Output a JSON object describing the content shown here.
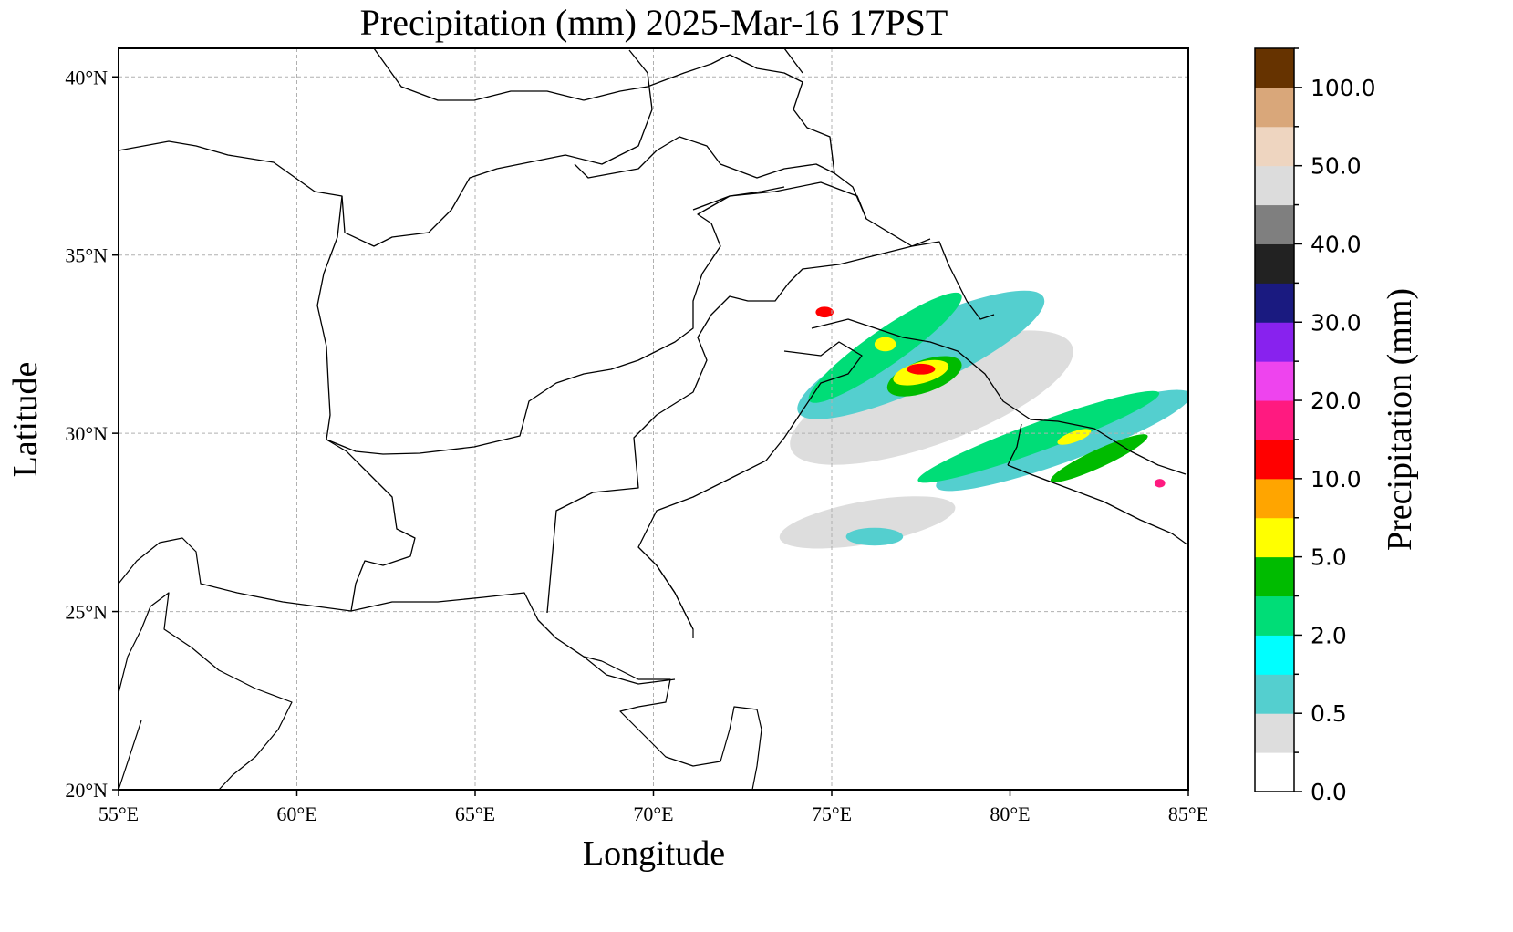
{
  "figure": {
    "title": "Precipitation (mm)  2025-Mar-16 17PST",
    "xlabel": "Longitude",
    "ylabel": "Latitude",
    "xticks": [
      "55°E",
      "60°E",
      "65°E",
      "70°E",
      "75°E",
      "80°E",
      "85°E"
    ],
    "xtick_values": [
      55,
      60,
      65,
      70,
      75,
      80,
      85
    ],
    "yticks": [
      "20°N",
      "25°N",
      "30°N",
      "35°N",
      "40°N"
    ],
    "ytick_values": [
      20,
      25,
      30,
      35,
      40
    ],
    "extent": {
      "lon": [
        55,
        85
      ],
      "lat": [
        20,
        40.8
      ]
    },
    "grid": true
  },
  "colorbar": {
    "label": "Precipitation (mm)",
    "boundaries": [
      0,
      0.25,
      0.5,
      1,
      2,
      3,
      5,
      7,
      10,
      15,
      20,
      25,
      30,
      35,
      40,
      45,
      50,
      60,
      75,
      100,
      150
    ],
    "colors": [
      "#ffffff",
      "#dddddd",
      "#54cfcf",
      "#00ffff",
      "#00dd77",
      "#00bb00",
      "#ffff00",
      "#ffa500",
      "#ff0000",
      "#ff1a80",
      "#ee44ee",
      "#8822ee",
      "#1a1a80",
      "#222222",
      "#7f7f7f",
      "#dcdcdc",
      "#eed5c0",
      "#d9a77a",
      "#663300"
    ],
    "tick_labels": [
      "0.0",
      "0.5",
      "2.0",
      "5.0",
      "10.0",
      "20.0",
      "30.0",
      "40.0",
      "50.0",
      "100.0"
    ]
  },
  "precip_features": [
    {
      "type": "ellipse",
      "lon": 77.8,
      "lat": 31.0,
      "rx": 4.2,
      "ry": 1.3,
      "rot": -20,
      "level": "0.25"
    },
    {
      "type": "ellipse",
      "lon": 76.0,
      "lat": 27.5,
      "rx": 2.5,
      "ry": 0.6,
      "rot": -10,
      "level": "0.25"
    },
    {
      "type": "ellipse",
      "lon": 77.5,
      "lat": 32.2,
      "rx": 3.8,
      "ry": 0.9,
      "rot": -25,
      "level": "0.5"
    },
    {
      "type": "ellipse",
      "lon": 81.5,
      "lat": 29.8,
      "rx": 3.8,
      "ry": 0.6,
      "rot": -20,
      "level": "0.5"
    },
    {
      "type": "ellipse",
      "lon": 76.2,
      "lat": 27.1,
      "rx": 0.8,
      "ry": 0.25,
      "rot": 0,
      "level": "0.5"
    },
    {
      "type": "ellipse",
      "lon": 76.5,
      "lat": 32.4,
      "rx": 2.6,
      "ry": 0.5,
      "rot": -35,
      "level": "2"
    },
    {
      "type": "ellipse",
      "lon": 80.8,
      "lat": 29.9,
      "rx": 3.6,
      "ry": 0.4,
      "rot": -20,
      "level": "2"
    },
    {
      "type": "ellipse",
      "lon": 77.6,
      "lat": 31.6,
      "rx": 1.1,
      "ry": 0.45,
      "rot": -20,
      "level": "3"
    },
    {
      "type": "ellipse",
      "lon": 82.5,
      "lat": 29.3,
      "rx": 1.5,
      "ry": 0.25,
      "rot": -25,
      "level": "3"
    },
    {
      "type": "ellipse",
      "lon": 77.5,
      "lat": 31.7,
      "rx": 0.8,
      "ry": 0.3,
      "rot": -15,
      "level": "5"
    },
    {
      "type": "ellipse",
      "lon": 76.5,
      "lat": 32.5,
      "rx": 0.3,
      "ry": 0.2,
      "rot": 0,
      "level": "5"
    },
    {
      "type": "ellipse",
      "lon": 81.8,
      "lat": 29.9,
      "rx": 0.5,
      "ry": 0.15,
      "rot": -20,
      "level": "5"
    },
    {
      "type": "ellipse",
      "lon": 77.5,
      "lat": 31.8,
      "rx": 0.4,
      "ry": 0.15,
      "rot": 0,
      "level": "10"
    },
    {
      "type": "ellipse",
      "lon": 74.8,
      "lat": 33.4,
      "rx": 0.25,
      "ry": 0.15,
      "rot": 0,
      "level": "10"
    },
    {
      "type": "ellipse",
      "lon": 84.2,
      "lat": 28.6,
      "rx": 0.15,
      "ry": 0.12,
      "rot": 0,
      "level": "15"
    }
  ]
}
